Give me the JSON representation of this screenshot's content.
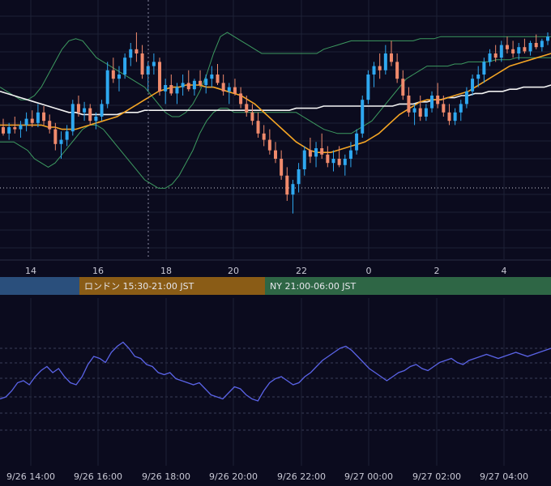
{
  "chart_data": [
    {
      "type": "candlestick",
      "panel": "price",
      "title": "",
      "x_hour_ticks": [
        "14",
        "16",
        "18",
        "20",
        "22",
        "0",
        "2",
        "4"
      ],
      "ylim": [
        0,
        100
      ],
      "colors": {
        "up": "#2ea8f0",
        "down": "#f08a6c",
        "ma_fast": "#f5a524",
        "ma_slow": "#f2f2f2",
        "bands": "#3d9a60",
        "grid": "#1e2236"
      },
      "candles": [
        {
          "o": 55,
          "h": 59,
          "l": 51,
          "c": 52
        },
        {
          "o": 52,
          "h": 57,
          "l": 49,
          "c": 55
        },
        {
          "o": 55,
          "h": 60,
          "l": 52,
          "c": 54
        },
        {
          "o": 54,
          "h": 58,
          "l": 50,
          "c": 56
        },
        {
          "o": 56,
          "h": 62,
          "l": 53,
          "c": 59
        },
        {
          "o": 59,
          "h": 63,
          "l": 55,
          "c": 57
        },
        {
          "o": 57,
          "h": 66,
          "l": 55,
          "c": 62
        },
        {
          "o": 62,
          "h": 65,
          "l": 56,
          "c": 58
        },
        {
          "o": 58,
          "h": 61,
          "l": 52,
          "c": 54
        },
        {
          "o": 54,
          "h": 57,
          "l": 44,
          "c": 47
        },
        {
          "o": 47,
          "h": 53,
          "l": 40,
          "c": 49
        },
        {
          "o": 49,
          "h": 56,
          "l": 46,
          "c": 53
        },
        {
          "o": 53,
          "h": 68,
          "l": 51,
          "c": 66
        },
        {
          "o": 66,
          "h": 70,
          "l": 60,
          "c": 62
        },
        {
          "o": 62,
          "h": 67,
          "l": 58,
          "c": 64
        },
        {
          "o": 64,
          "h": 66,
          "l": 56,
          "c": 58
        },
        {
          "o": 58,
          "h": 62,
          "l": 54,
          "c": 60
        },
        {
          "o": 60,
          "h": 68,
          "l": 58,
          "c": 66
        },
        {
          "o": 66,
          "h": 86,
          "l": 64,
          "c": 82
        },
        {
          "o": 82,
          "h": 88,
          "l": 76,
          "c": 78
        },
        {
          "o": 78,
          "h": 84,
          "l": 72,
          "c": 80
        },
        {
          "o": 80,
          "h": 90,
          "l": 78,
          "c": 88
        },
        {
          "o": 88,
          "h": 95,
          "l": 84,
          "c": 92
        },
        {
          "o": 92,
          "h": 100,
          "l": 86,
          "c": 90
        },
        {
          "o": 90,
          "h": 94,
          "l": 78,
          "c": 80
        },
        {
          "o": 80,
          "h": 86,
          "l": 72,
          "c": 84
        },
        {
          "o": 84,
          "h": 90,
          "l": 80,
          "c": 86
        },
        {
          "o": 86,
          "h": 88,
          "l": 70,
          "c": 72
        },
        {
          "o": 72,
          "h": 78,
          "l": 66,
          "c": 75
        },
        {
          "o": 75,
          "h": 80,
          "l": 70,
          "c": 71
        },
        {
          "o": 71,
          "h": 76,
          "l": 66,
          "c": 74
        },
        {
          "o": 74,
          "h": 80,
          "l": 70,
          "c": 76
        },
        {
          "o": 76,
          "h": 82,
          "l": 72,
          "c": 73
        },
        {
          "o": 73,
          "h": 78,
          "l": 70,
          "c": 77
        },
        {
          "o": 77,
          "h": 82,
          "l": 74,
          "c": 75
        },
        {
          "o": 75,
          "h": 80,
          "l": 71,
          "c": 78
        },
        {
          "o": 78,
          "h": 84,
          "l": 74,
          "c": 80
        },
        {
          "o": 80,
          "h": 85,
          "l": 75,
          "c": 76
        },
        {
          "o": 76,
          "h": 80,
          "l": 70,
          "c": 72
        },
        {
          "o": 72,
          "h": 76,
          "l": 66,
          "c": 74
        },
        {
          "o": 74,
          "h": 78,
          "l": 70,
          "c": 71
        },
        {
          "o": 71,
          "h": 74,
          "l": 64,
          "c": 66
        },
        {
          "o": 66,
          "h": 70,
          "l": 60,
          "c": 62
        },
        {
          "o": 62,
          "h": 66,
          "l": 56,
          "c": 58
        },
        {
          "o": 58,
          "h": 62,
          "l": 50,
          "c": 52
        },
        {
          "o": 52,
          "h": 56,
          "l": 46,
          "c": 49
        },
        {
          "o": 49,
          "h": 54,
          "l": 42,
          "c": 44
        },
        {
          "o": 44,
          "h": 48,
          "l": 38,
          "c": 40
        },
        {
          "o": 40,
          "h": 44,
          "l": 30,
          "c": 32
        },
        {
          "o": 32,
          "h": 36,
          "l": 20,
          "c": 23
        },
        {
          "o": 23,
          "h": 30,
          "l": 14,
          "c": 28
        },
        {
          "o": 28,
          "h": 38,
          "l": 24,
          "c": 35
        },
        {
          "o": 35,
          "h": 46,
          "l": 32,
          "c": 44
        },
        {
          "o": 44,
          "h": 50,
          "l": 38,
          "c": 41
        },
        {
          "o": 41,
          "h": 48,
          "l": 36,
          "c": 45
        },
        {
          "o": 45,
          "h": 52,
          "l": 40,
          "c": 42
        },
        {
          "o": 42,
          "h": 46,
          "l": 36,
          "c": 38
        },
        {
          "o": 38,
          "h": 44,
          "l": 34,
          "c": 40
        },
        {
          "o": 40,
          "h": 46,
          "l": 36,
          "c": 37
        },
        {
          "o": 37,
          "h": 42,
          "l": 32,
          "c": 40
        },
        {
          "o": 40,
          "h": 48,
          "l": 36,
          "c": 44
        },
        {
          "o": 44,
          "h": 54,
          "l": 42,
          "c": 52
        },
        {
          "o": 52,
          "h": 70,
          "l": 50,
          "c": 68
        },
        {
          "o": 68,
          "h": 82,
          "l": 66,
          "c": 80
        },
        {
          "o": 80,
          "h": 86,
          "l": 74,
          "c": 84
        },
        {
          "o": 84,
          "h": 90,
          "l": 78,
          "c": 82
        },
        {
          "o": 82,
          "h": 94,
          "l": 80,
          "c": 90
        },
        {
          "o": 90,
          "h": 96,
          "l": 84,
          "c": 86
        },
        {
          "o": 86,
          "h": 90,
          "l": 76,
          "c": 78
        },
        {
          "o": 78,
          "h": 82,
          "l": 68,
          "c": 70
        },
        {
          "o": 70,
          "h": 74,
          "l": 60,
          "c": 62
        },
        {
          "o": 62,
          "h": 66,
          "l": 56,
          "c": 64
        },
        {
          "o": 64,
          "h": 70,
          "l": 58,
          "c": 60
        },
        {
          "o": 60,
          "h": 66,
          "l": 58,
          "c": 64
        },
        {
          "o": 64,
          "h": 72,
          "l": 62,
          "c": 70
        },
        {
          "o": 70,
          "h": 76,
          "l": 64,
          "c": 66
        },
        {
          "o": 66,
          "h": 70,
          "l": 60,
          "c": 62
        },
        {
          "o": 62,
          "h": 66,
          "l": 56,
          "c": 58
        },
        {
          "o": 58,
          "h": 64,
          "l": 56,
          "c": 62
        },
        {
          "o": 62,
          "h": 68,
          "l": 58,
          "c": 66
        },
        {
          "o": 66,
          "h": 74,
          "l": 64,
          "c": 72
        },
        {
          "o": 72,
          "h": 80,
          "l": 70,
          "c": 78
        },
        {
          "o": 78,
          "h": 84,
          "l": 74,
          "c": 80
        },
        {
          "o": 80,
          "h": 88,
          "l": 76,
          "c": 86
        },
        {
          "o": 86,
          "h": 92,
          "l": 84,
          "c": 90
        },
        {
          "o": 90,
          "h": 94,
          "l": 86,
          "c": 88
        },
        {
          "o": 88,
          "h": 96,
          "l": 86,
          "c": 94
        },
        {
          "o": 94,
          "h": 98,
          "l": 90,
          "c": 92
        },
        {
          "o": 92,
          "h": 96,
          "l": 88,
          "c": 90
        },
        {
          "o": 90,
          "h": 95,
          "l": 87,
          "c": 93
        },
        {
          "o": 93,
          "h": 97,
          "l": 90,
          "c": 91
        },
        {
          "o": 91,
          "h": 96,
          "l": 89,
          "c": 95
        },
        {
          "o": 95,
          "h": 99,
          "l": 92,
          "c": 93
        },
        {
          "o": 93,
          "h": 97,
          "l": 91,
          "c": 96
        },
        {
          "o": 96,
          "h": 100,
          "l": 94,
          "c": 98
        }
      ],
      "ma_fast": [
        56,
        56,
        56,
        56,
        56,
        56,
        56,
        55,
        55,
        54,
        54,
        54,
        55,
        56,
        57,
        58,
        59,
        60,
        62,
        64,
        66,
        68,
        70,
        72,
        73,
        74,
        74,
        75,
        75,
        75,
        74,
        74,
        73,
        72,
        71,
        70,
        68,
        66,
        63,
        60,
        57,
        54,
        51,
        48,
        46,
        44,
        43,
        43,
        43,
        44,
        45,
        46,
        47,
        48,
        50,
        52,
        55,
        58,
        61,
        63,
        65,
        67,
        68,
        68,
        68,
        69,
        70,
        71,
        72,
        74,
        76,
        78,
        80,
        82,
        84,
        85,
        86,
        87,
        88,
        89,
        90
      ],
      "ma_slow": [
        72,
        71,
        70,
        69,
        68,
        67,
        66,
        65,
        64,
        63,
        62,
        62,
        61,
        61,
        61,
        61,
        61,
        61,
        62,
        62,
        62,
        63,
        63,
        63,
        63,
        63,
        63,
        63,
        63,
        63,
        63,
        63,
        63,
        63,
        63,
        63,
        63,
        63,
        63,
        63,
        63,
        63,
        63,
        64,
        64,
        64,
        64,
        65,
        65,
        65,
        65,
        65,
        65,
        65,
        65,
        65,
        65,
        65,
        66,
        66,
        66,
        67,
        67,
        68,
        68,
        69,
        69,
        70,
        70,
        71,
        71,
        72,
        72,
        72,
        73,
        73,
        74,
        74,
        74,
        74,
        75
      ],
      "bb_upper": [
        74,
        72,
        70,
        68,
        68,
        70,
        74,
        80,
        86,
        92,
        96,
        97,
        96,
        92,
        88,
        86,
        84,
        82,
        80,
        78,
        76,
        74,
        70,
        66,
        62,
        60,
        60,
        62,
        66,
        72,
        80,
        90,
        98,
        100,
        98,
        96,
        94,
        92,
        90,
        90,
        90,
        90,
        90,
        90,
        90,
        90,
        90,
        92,
        93,
        94,
        95,
        96,
        96,
        96,
        96,
        96,
        96,
        96,
        96,
        96,
        96,
        97,
        97,
        97,
        98,
        98,
        98,
        98,
        98,
        98,
        98,
        98,
        98,
        98,
        98,
        98,
        98,
        98,
        98,
        98,
        98
      ],
      "bb_lower": [
        48,
        48,
        48,
        46,
        44,
        40,
        38,
        36,
        38,
        42,
        46,
        50,
        54,
        56,
        56,
        54,
        50,
        46,
        42,
        38,
        34,
        30,
        28,
        26,
        26,
        28,
        32,
        38,
        44,
        52,
        58,
        62,
        64,
        64,
        62,
        62,
        62,
        62,
        62,
        62,
        62,
        62,
        62,
        62,
        60,
        58,
        56,
        54,
        53,
        52,
        52,
        52,
        54,
        56,
        58,
        62,
        66,
        70,
        74,
        78,
        80,
        82,
        84,
        84,
        84,
        84,
        85,
        85,
        86,
        86,
        86,
        86,
        87,
        87,
        87,
        88,
        88,
        88,
        88,
        88,
        88
      ]
    },
    {
      "type": "line",
      "panel": "oscillator",
      "title": "",
      "ylim": [
        0,
        100
      ],
      "series": [
        {
          "values": [
            30,
            32,
            38,
            46,
            48,
            44,
            52,
            58,
            62,
            56,
            60,
            52,
            46,
            44,
            52,
            64,
            72,
            70,
            66,
            76,
            82,
            86,
            80,
            72,
            70,
            64,
            62,
            56,
            54,
            56,
            50,
            48,
            46,
            44,
            46,
            40,
            34,
            32,
            30,
            36,
            42,
            40,
            34,
            30,
            28,
            38,
            46,
            50,
            52,
            48,
            44,
            46,
            52,
            56,
            62,
            68,
            72,
            76,
            80,
            82,
            78,
            72,
            66,
            60,
            56,
            52,
            48,
            52,
            56,
            58,
            62,
            64,
            60,
            58,
            62,
            66,
            68,
            70,
            66,
            64,
            68,
            70,
            72,
            74,
            72,
            70,
            72,
            74,
            76,
            74,
            72,
            74,
            76,
            78,
            80
          ]
        }
      ],
      "colors": {
        "line": "#5a63e6"
      },
      "x_tick_labels": [
        "9/26 14:00",
        "9/26 16:00",
        "9/26 18:00",
        "9/26 20:00",
        "9/26 22:00",
        "9/27 00:00",
        "9/27 02:00",
        "9/27 04:00"
      ]
    }
  ],
  "session_bands": [
    {
      "label": "",
      "color": "#2a4f7c"
    },
    {
      "label": "ロンドン 15:30-21:00 JST",
      "color": "#8a5c16"
    },
    {
      "label": "NY 21:00-06:00 JST",
      "color": "#2e6645"
    }
  ]
}
